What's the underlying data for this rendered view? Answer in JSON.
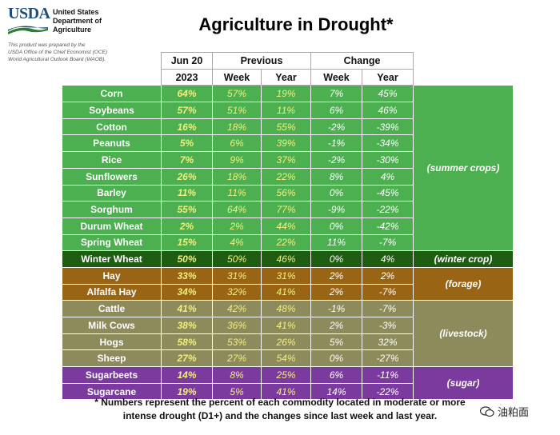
{
  "header": {
    "logo_text": "USDA",
    "department": [
      "United States",
      "Department of",
      "Agriculture"
    ],
    "disclaimer": [
      "This product was prepared by the",
      "USDA Office of the Chief Economist (OCE)",
      "World Agricultural Outlook Board (WAOB)."
    ]
  },
  "title": "Agriculture in Drought*",
  "columns": {
    "top": [
      "Jun 20",
      "Previous",
      "Change"
    ],
    "sub": [
      "2023",
      "Week",
      "Year",
      "Week",
      "Year"
    ]
  },
  "groups": {
    "summer": "(summer crops)",
    "winter": "(winter crop)",
    "forage": "(forage)",
    "livestock": "(livestock)",
    "sugar": "(sugar)"
  },
  "rows": [
    {
      "name": "Corn",
      "cur": "64%",
      "pw": "57%",
      "py": "19%",
      "cw": "7%",
      "cy": "45%"
    },
    {
      "name": "Soybeans",
      "cur": "57%",
      "pw": "51%",
      "py": "11%",
      "cw": "6%",
      "cy": "46%"
    },
    {
      "name": "Cotton",
      "cur": "16%",
      "pw": "18%",
      "py": "55%",
      "cw": "-2%",
      "cy": "-39%"
    },
    {
      "name": "Peanuts",
      "cur": "5%",
      "pw": "6%",
      "py": "39%",
      "cw": "-1%",
      "cy": "-34%"
    },
    {
      "name": "Rice",
      "cur": "7%",
      "pw": "9%",
      "py": "37%",
      "cw": "-2%",
      "cy": "-30%"
    },
    {
      "name": "Sunflowers",
      "cur": "26%",
      "pw": "18%",
      "py": "22%",
      "cw": "8%",
      "cy": "4%"
    },
    {
      "name": "Barley",
      "cur": "11%",
      "pw": "11%",
      "py": "56%",
      "cw": "0%",
      "cy": "-45%"
    },
    {
      "name": "Sorghum",
      "cur": "55%",
      "pw": "64%",
      "py": "77%",
      "cw": "-9%",
      "cy": "-22%"
    },
    {
      "name": "Durum Wheat",
      "cur": "2%",
      "pw": "2%",
      "py": "44%",
      "cw": "0%",
      "cy": "-42%"
    },
    {
      "name": "Spring Wheat",
      "cur": "15%",
      "pw": "4%",
      "py": "22%",
      "cw": "11%",
      "cy": "-7%"
    },
    {
      "name": "Winter Wheat",
      "cur": "50%",
      "pw": "50%",
      "py": "46%",
      "cw": "0%",
      "cy": "4%"
    },
    {
      "name": "Hay",
      "cur": "33%",
      "pw": "31%",
      "py": "31%",
      "cw": "2%",
      "cy": "2%"
    },
    {
      "name": "Alfalfa Hay",
      "cur": "34%",
      "pw": "32%",
      "py": "41%",
      "cw": "2%",
      "cy": "-7%"
    },
    {
      "name": "Cattle",
      "cur": "41%",
      "pw": "42%",
      "py": "48%",
      "cw": "-1%",
      "cy": "-7%"
    },
    {
      "name": "Milk Cows",
      "cur": "38%",
      "pw": "36%",
      "py": "41%",
      "cw": "2%",
      "cy": "-3%"
    },
    {
      "name": "Hogs",
      "cur": "58%",
      "pw": "53%",
      "py": "26%",
      "cw": "5%",
      "cy": "32%"
    },
    {
      "name": "Sheep",
      "cur": "27%",
      "pw": "27%",
      "py": "54%",
      "cw": "0%",
      "cy": "-27%"
    },
    {
      "name": "Sugarbeets",
      "cur": "14%",
      "pw": "8%",
      "py": "25%",
      "cw": "6%",
      "cy": "-11%"
    },
    {
      "name": "Sugarcane",
      "cur": "19%",
      "pw": "5%",
      "py": "41%",
      "cw": "14%",
      "cy": "-22%"
    }
  ],
  "footnote": [
    "* Numbers represent the percent of each commodity located in moderate or more",
    "intense drought (D1+) and the changes since last week and last year."
  ],
  "watermark": "油粕面"
}
